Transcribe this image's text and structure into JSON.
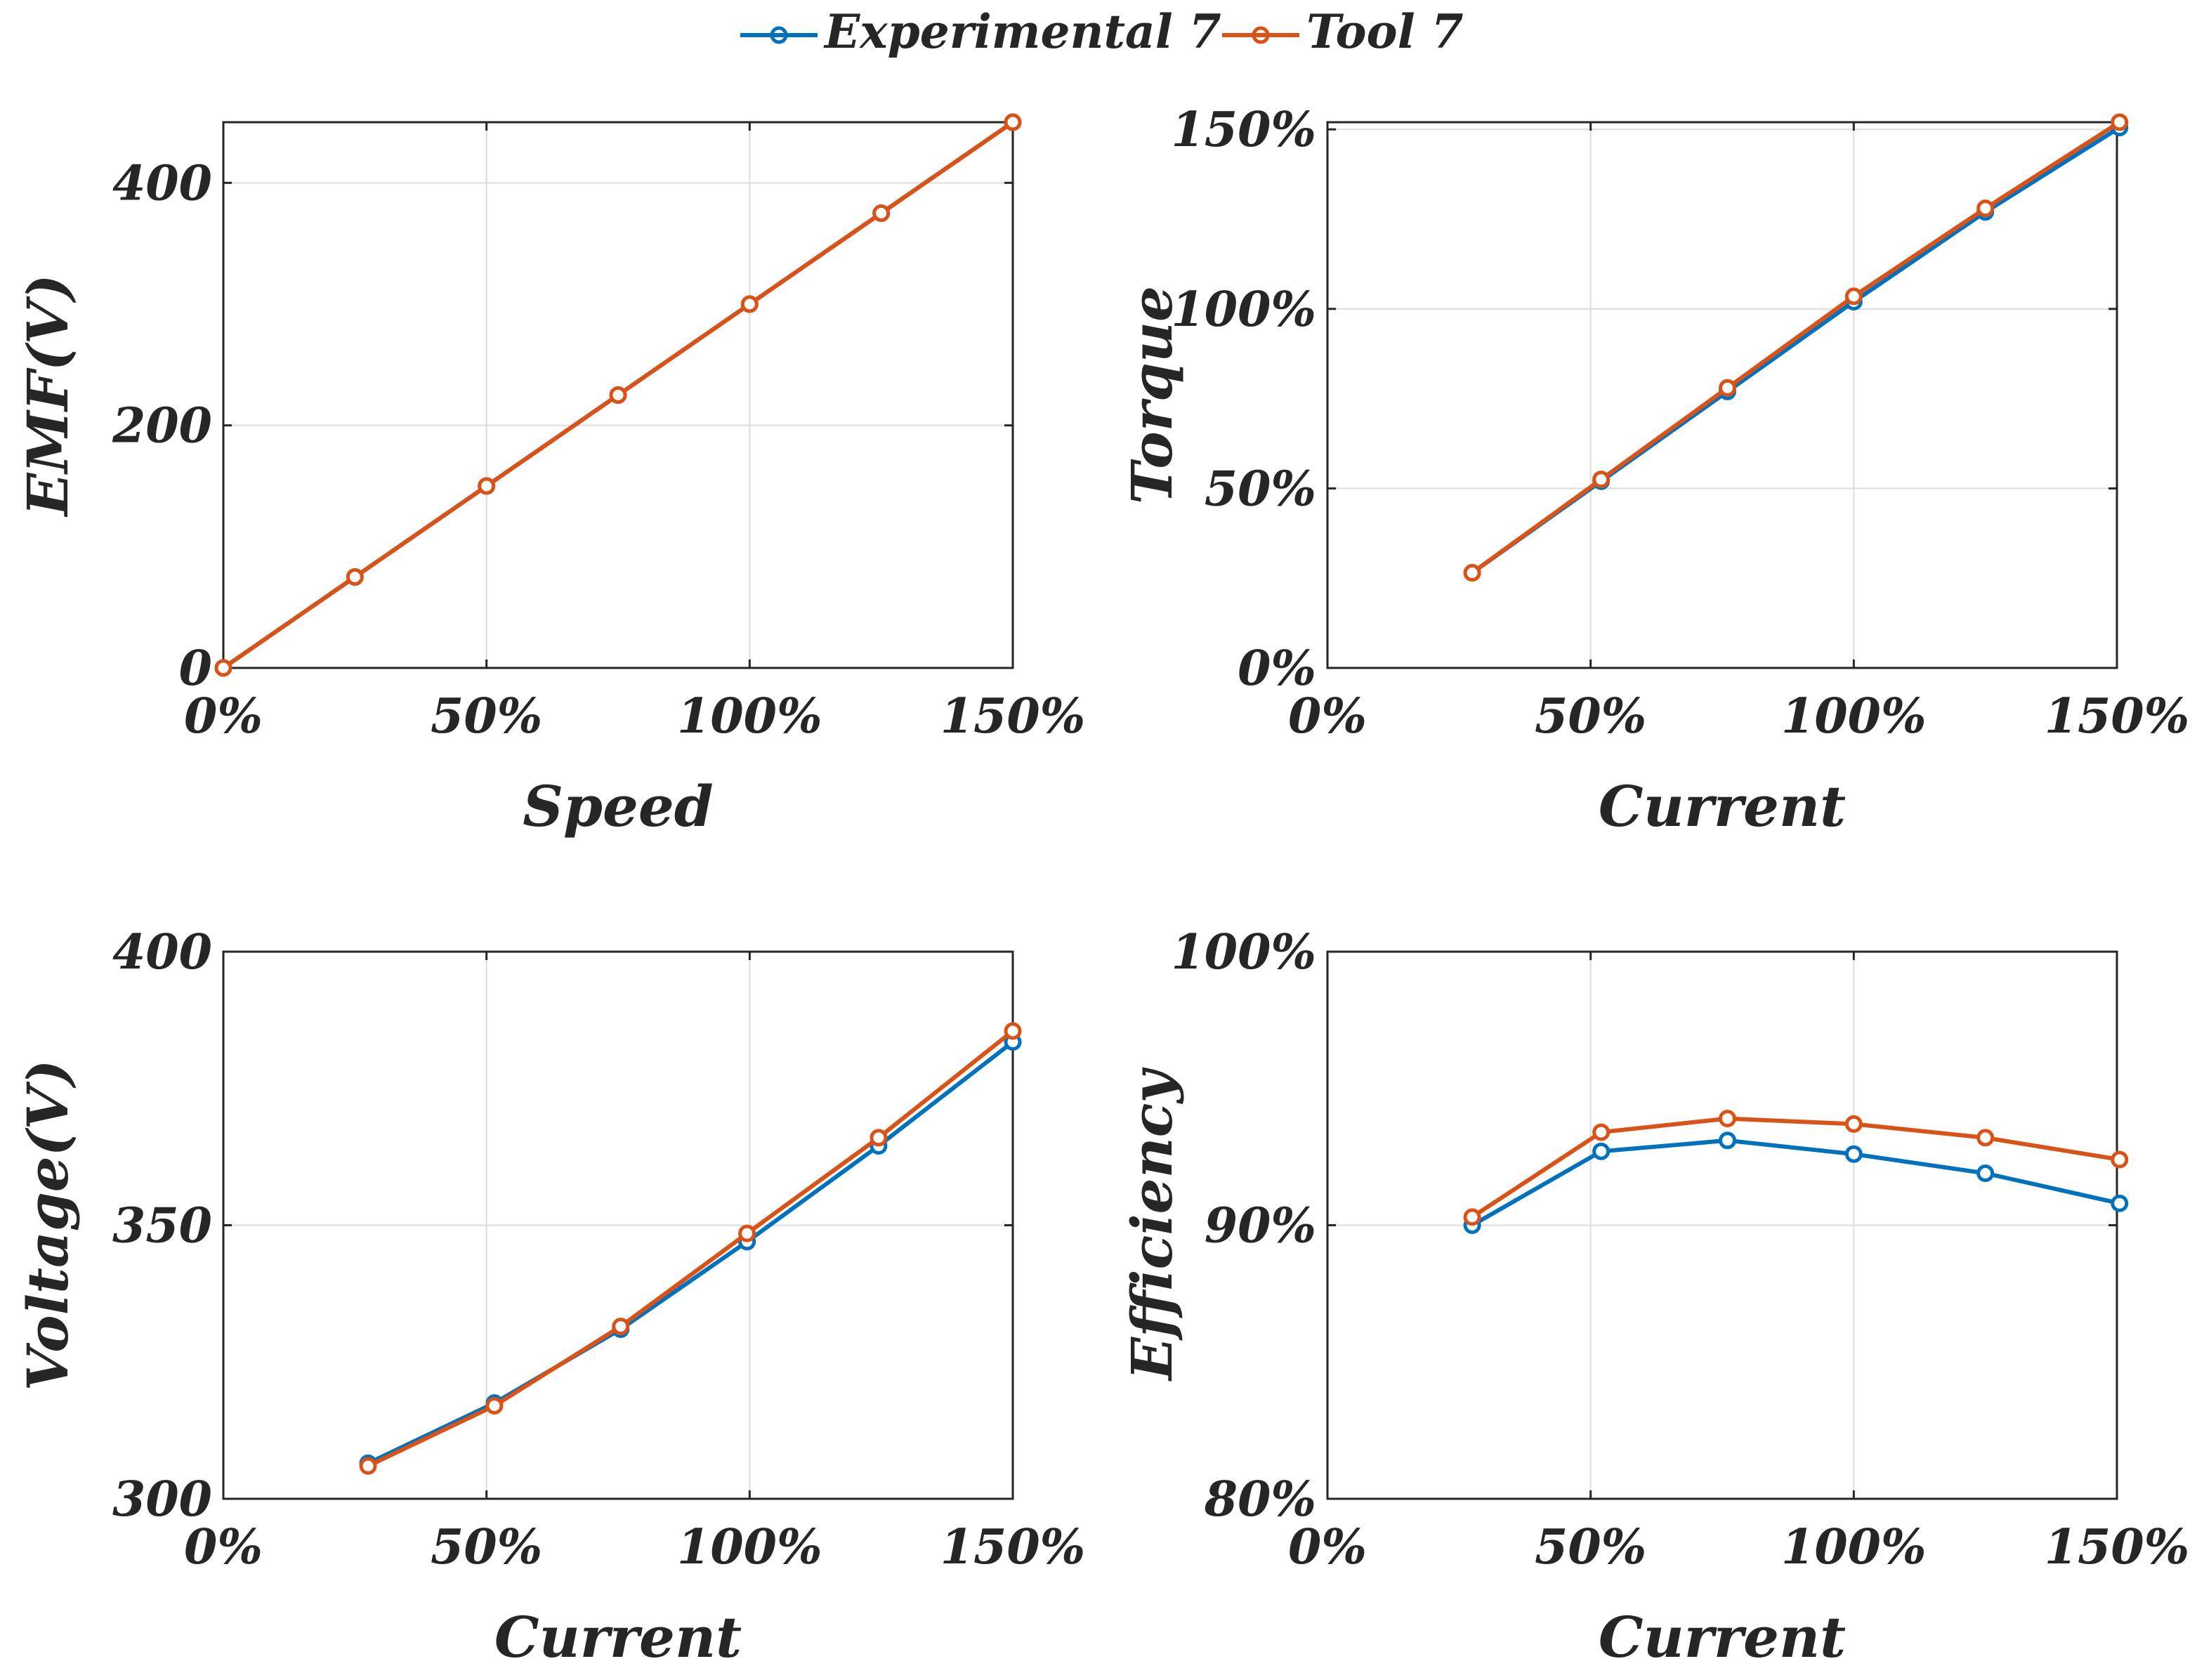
{
  "legend": {
    "entries": [
      {
        "name": "Experimental 7",
        "color": "#0072BD"
      },
      {
        "name": "Tool 7",
        "color": "#D95319"
      }
    ]
  },
  "chart_data": [
    {
      "id": "emf",
      "type": "line",
      "title": "",
      "xlabel": "Speed",
      "ylabel": "EMF(V)",
      "xlim": [
        0,
        150
      ],
      "ylim": [
        0,
        450
      ],
      "xticks": [
        0,
        50,
        100,
        150
      ],
      "xtick_labels": [
        "0%",
        "50%",
        "100%",
        "150%"
      ],
      "yticks": [
        0,
        200,
        400
      ],
      "ytick_labels": [
        "0",
        "200",
        "400"
      ],
      "grid": true,
      "series": [
        {
          "name": "Experimental 7",
          "color": "#0072BD",
          "x": [
            0,
            25,
            50,
            75,
            100,
            125,
            150
          ],
          "y": [
            0,
            75,
            150,
            225,
            300,
            375,
            450
          ]
        },
        {
          "name": "Tool 7",
          "color": "#D95319",
          "x": [
            0,
            25,
            50,
            75,
            100,
            125,
            150
          ],
          "y": [
            0,
            75,
            150,
            225,
            300,
            375,
            450
          ]
        }
      ]
    },
    {
      "id": "torque",
      "type": "line",
      "title": "",
      "xlabel": "Current",
      "ylabel": "Torque",
      "xlim": [
        0,
        150
      ],
      "ylim": [
        0,
        152
      ],
      "xticks": [
        0,
        50,
        100,
        150
      ],
      "xtick_labels": [
        "0%",
        "50%",
        "100%",
        "150%"
      ],
      "yticks": [
        0,
        50,
        100,
        150
      ],
      "ytick_labels": [
        "0%",
        "50%",
        "100%",
        "150%"
      ],
      "grid": true,
      "series": [
        {
          "name": "Experimental 7",
          "color": "#0072BD",
          "x": [
            27.5,
            52,
            76,
            100,
            125,
            150.5
          ],
          "y": [
            26.5,
            52,
            77,
            102,
            127,
            150.5
          ]
        },
        {
          "name": "Tool 7",
          "color": "#D95319",
          "x": [
            27.5,
            52,
            76,
            100,
            125,
            150.5
          ],
          "y": [
            26.5,
            52.5,
            78,
            103.5,
            128,
            152
          ]
        }
      ]
    },
    {
      "id": "voltage",
      "type": "line",
      "title": "",
      "xlabel": "Current",
      "ylabel": "Voltage(V)",
      "xlim": [
        0,
        150
      ],
      "ylim": [
        300,
        400
      ],
      "xticks": [
        0,
        50,
        100,
        150
      ],
      "xtick_labels": [
        "0%",
        "50%",
        "100%",
        "150%"
      ],
      "yticks": [
        300,
        350,
        400
      ],
      "ytick_labels": [
        "300",
        "350",
        "400"
      ],
      "grid": true,
      "series": [
        {
          "name": "Experimental 7",
          "color": "#0072BD",
          "x": [
            27.5,
            51.5,
            75.5,
            99.5,
            124.5,
            150
          ],
          "y": [
            306.5,
            317.5,
            331,
            347,
            364.5,
            383.5
          ]
        },
        {
          "name": "Tool 7",
          "color": "#D95319",
          "x": [
            27.5,
            51.5,
            75.5,
            99.5,
            124.5,
            150
          ],
          "y": [
            306,
            317,
            331.5,
            348.5,
            366,
            385.5
          ]
        }
      ]
    },
    {
      "id": "efficiency",
      "type": "line",
      "title": "",
      "xlabel": "Current",
      "ylabel": "Efficiency",
      "xlim": [
        0,
        150
      ],
      "ylim": [
        80,
        100
      ],
      "xticks": [
        0,
        50,
        100,
        150
      ],
      "xtick_labels": [
        "0%",
        "50%",
        "100%",
        "150%"
      ],
      "yticks": [
        80,
        90,
        100
      ],
      "ytick_labels": [
        "80%",
        "90%",
        "100%"
      ],
      "grid": true,
      "series": [
        {
          "name": "Experimental 7",
          "color": "#0072BD",
          "x": [
            27.5,
            52,
            76,
            100,
            125,
            150.5
          ],
          "y": [
            90.0,
            92.7,
            93.1,
            92.6,
            91.9,
            90.8
          ]
        },
        {
          "name": "Tool 7",
          "color": "#D95319",
          "x": [
            27.5,
            52,
            76,
            100,
            125,
            150.5
          ],
          "y": [
            90.3,
            93.4,
            93.9,
            93.7,
            93.2,
            92.4
          ]
        }
      ]
    }
  ]
}
